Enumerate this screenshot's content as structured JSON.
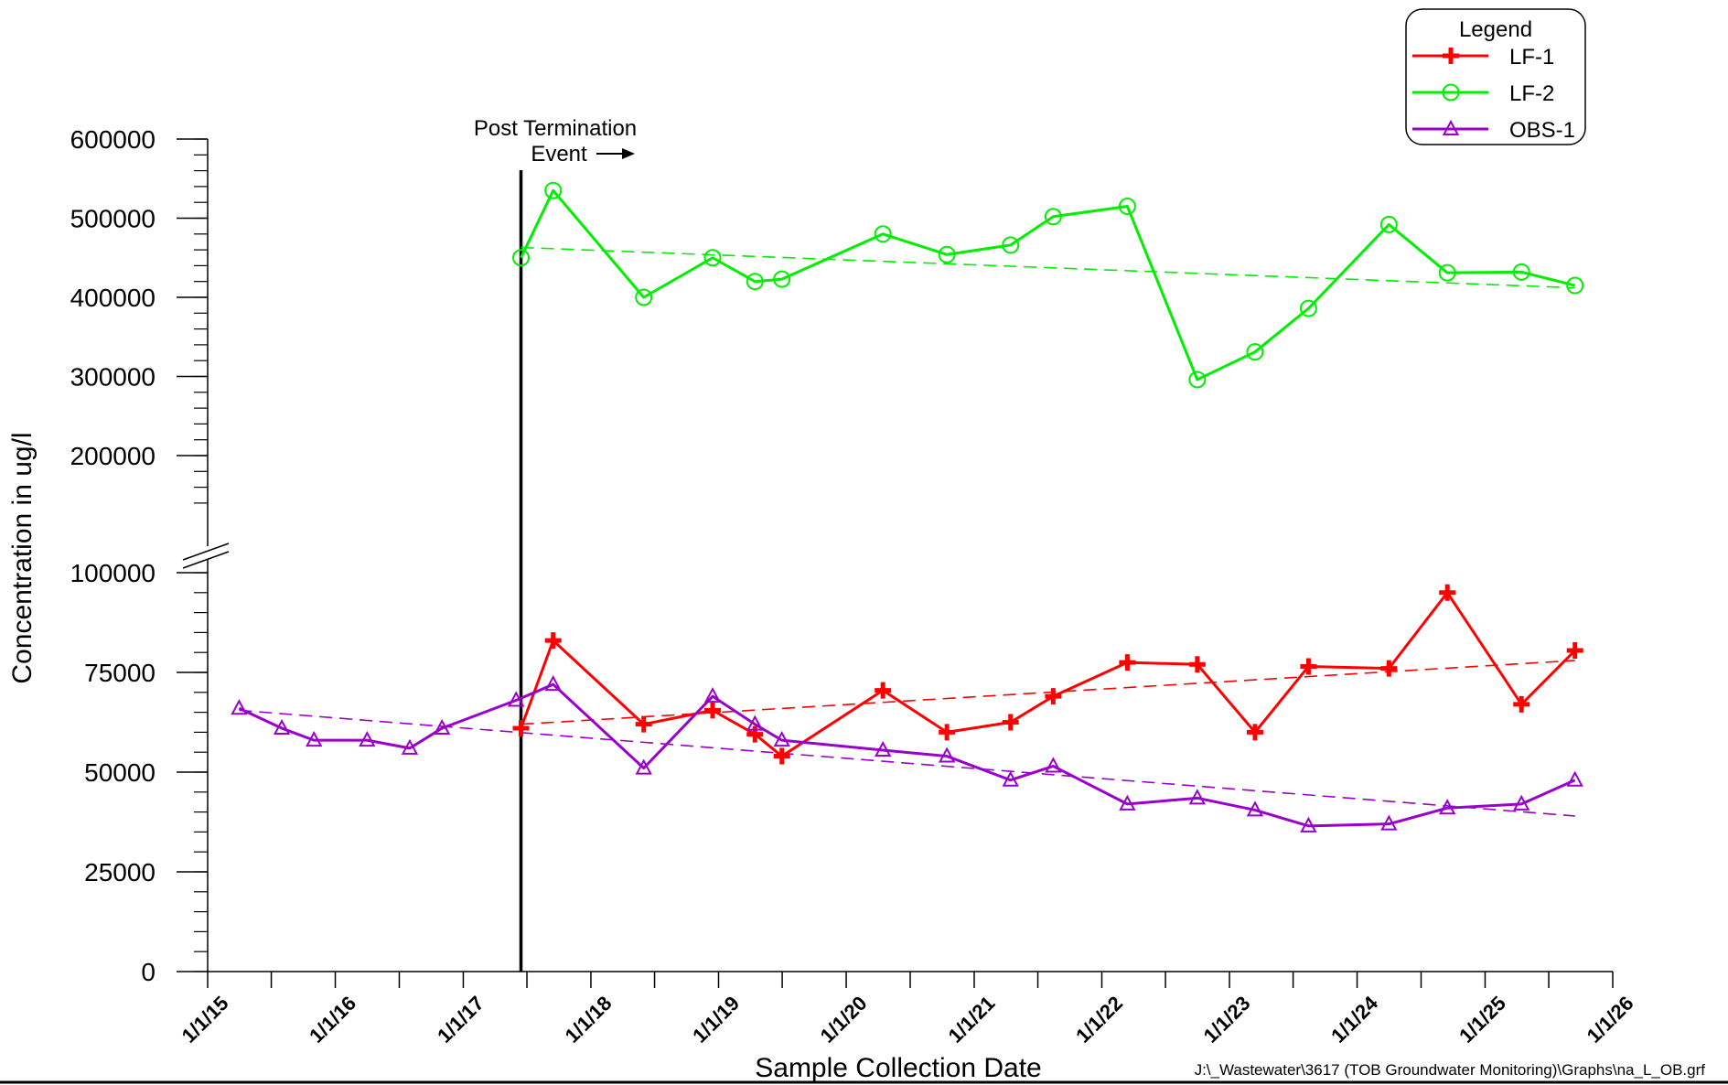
{
  "chart_data": {
    "type": "line",
    "xlabel": "Sample Collection Date",
    "ylabel": "Concentration in ug/l",
    "x_ticks": [
      "1/1/15",
      "1/1/16",
      "1/1/17",
      "1/1/18",
      "1/1/19",
      "1/1/20",
      "1/1/21",
      "1/1/22",
      "1/1/23",
      "1/1/24",
      "1/1/25",
      "1/1/26"
    ],
    "x_range": [
      "2015-01-01",
      "2026-01-01"
    ],
    "y_broken_axis": true,
    "y_lower_range": [
      0,
      100000
    ],
    "y_lower_ticks": [
      "0",
      "25000",
      "50000",
      "75000",
      "100000"
    ],
    "y_upper_range": [
      100000,
      600000
    ],
    "y_upper_ticks": [
      "200000",
      "300000",
      "400000",
      "500000",
      "600000"
    ],
    "grid": false,
    "legend": {
      "title": "Legend",
      "placement": "top-right"
    },
    "annotation": {
      "line1": "Post Termination",
      "line2": "Event",
      "arrow": "right-arrow",
      "date": "2017-06-15"
    },
    "footer": "J:\\_Wastewater\\3617 (TOB Groundwater Monitoring)\\Graphs\\na_L_OB.grf",
    "series": [
      {
        "name": "LF-1",
        "color": "#ff0000",
        "marker": "cross",
        "dates": [
          "2017-06-15",
          "2017-09-15",
          "2018-06-01",
          "2018-12-15",
          "2019-04-15",
          "2019-07-01",
          "2020-04-15",
          "2020-10-15",
          "2021-04-15",
          "2021-08-15",
          "2022-03-15",
          "2022-10-01",
          "2023-03-15",
          "2023-08-15",
          "2024-04-01",
          "2024-09-15",
          "2025-04-15",
          "2025-09-15"
        ],
        "values": [
          61000,
          83000,
          62000,
          65500,
          59500,
          54000,
          70500,
          60000,
          62500,
          69000,
          77500,
          77000,
          60000,
          76500,
          76000,
          95000,
          67000,
          80500
        ],
        "trend": [
          [
            "2017-06-15",
            62000
          ],
          [
            "2025-09-15",
            78000
          ]
        ]
      },
      {
        "name": "LF-2",
        "color": "#00ee00",
        "marker": "circle",
        "dates": [
          "2017-06-15",
          "2017-09-15",
          "2018-06-01",
          "2018-12-15",
          "2019-04-15",
          "2019-07-01",
          "2020-04-15",
          "2020-10-15",
          "2021-04-15",
          "2021-08-15",
          "2022-03-15",
          "2022-10-01",
          "2023-03-15",
          "2023-08-15",
          "2024-04-01",
          "2024-09-15",
          "2025-04-15",
          "2025-09-15"
        ],
        "values": [
          450000,
          535000,
          400000,
          450000,
          420000,
          423000,
          480000,
          454000,
          466000,
          502000,
          515000,
          296000,
          331000,
          386000,
          492000,
          431000,
          432000,
          415000
        ],
        "trend": [
          [
            "2017-06-15",
            463000
          ],
          [
            "2025-09-15",
            412000
          ]
        ]
      },
      {
        "name": "OBS-1",
        "color": "#9900cc",
        "marker": "triangle",
        "dates": [
          "2015-04-01",
          "2015-08-01",
          "2015-11-01",
          "2016-04-01",
          "2016-08-01",
          "2016-11-01",
          "2017-06-01",
          "2017-09-15",
          "2018-06-01",
          "2018-12-15",
          "2019-04-15",
          "2019-07-01",
          "2020-04-15",
          "2020-10-15",
          "2021-04-15",
          "2021-08-15",
          "2022-03-15",
          "2022-10-01",
          "2023-03-15",
          "2023-08-15",
          "2024-04-01",
          "2024-09-15",
          "2025-04-15",
          "2025-09-15"
        ],
        "values": [
          66000,
          61000,
          58000,
          58000,
          56000,
          61000,
          68000,
          72000,
          51000,
          69000,
          62000,
          58000,
          55500,
          54000,
          48000,
          51500,
          42000,
          43500,
          40500,
          36500,
          37000,
          41000,
          42000,
          48000
        ],
        "trend": [
          [
            "2015-04-01",
            65500
          ],
          [
            "2025-09-15",
            39000
          ]
        ]
      }
    ]
  }
}
